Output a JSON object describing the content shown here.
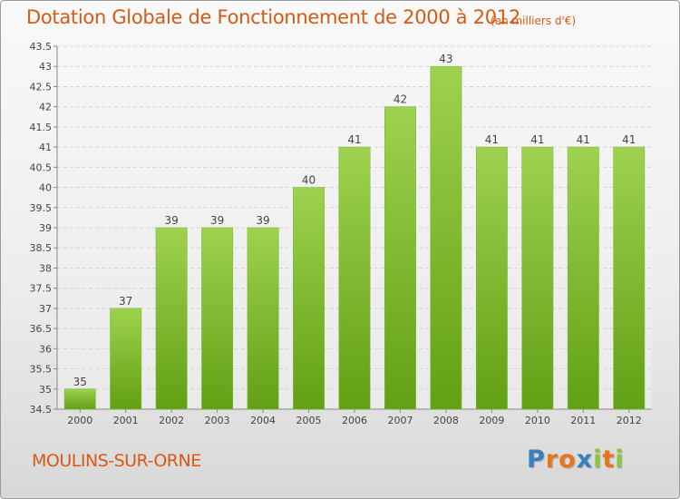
{
  "chart_data": {
    "type": "bar",
    "title": "Dotation Globale de Fonctionnement de 2000 à 2012",
    "subtitle": "(en milliers d'€)",
    "categories": [
      "2000",
      "2001",
      "2002",
      "2003",
      "2004",
      "2005",
      "2006",
      "2007",
      "2008",
      "2009",
      "2010",
      "2011",
      "2012"
    ],
    "values": [
      35,
      37,
      39,
      39,
      39,
      40,
      41,
      42,
      43,
      41,
      41,
      41,
      41
    ],
    "data_labels": [
      "35",
      "37",
      "39",
      "39",
      "39",
      "40",
      "41",
      "42",
      "43",
      "41",
      "41",
      "41",
      "41"
    ],
    "ylim": [
      34.5,
      43.5
    ],
    "yticks": [
      34.5,
      35,
      35.5,
      36,
      36.5,
      37,
      37.5,
      38,
      38.5,
      39,
      39.5,
      40,
      40.5,
      41,
      41.5,
      42,
      42.5,
      43,
      43.5
    ],
    "ytick_labels": [
      "34.5",
      "35",
      "35.5",
      "36",
      "36.5",
      "37",
      "37.5",
      "38",
      "38.5",
      "39",
      "39.5",
      "40",
      "40.5",
      "41",
      "41.5",
      "42",
      "42.5",
      "43",
      "43.5"
    ],
    "grid": true,
    "bar_color": "#8cc63f",
    "bar_color_dark": "#66a416"
  },
  "commune": "MOULINS-SUR-ORNE",
  "logo": {
    "letters": [
      "P",
      "r",
      "o",
      "x",
      "i",
      "t",
      "i"
    ],
    "colors": [
      "#3a7fc1",
      "#e8741e",
      "#e8741e",
      "#3a7fc1",
      "#8cc63f",
      "#e8741e",
      "#8cc63f"
    ]
  },
  "accent_color": "#d65a14"
}
